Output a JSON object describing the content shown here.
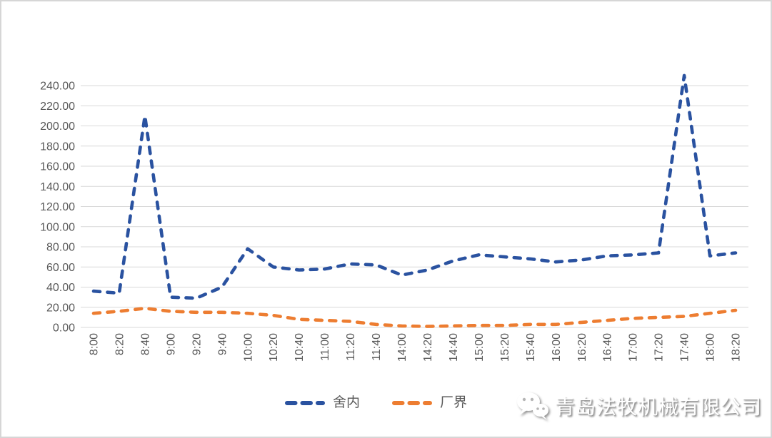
{
  "chart_data": {
    "type": "line",
    "title": "",
    "categories": [
      "8:00",
      "8:20",
      "8:40",
      "9:00",
      "9:20",
      "9:40",
      "10:00",
      "10:20",
      "10:40",
      "11:00",
      "11:20",
      "11:40",
      "14:00",
      "14:20",
      "14:40",
      "15:00",
      "15:20",
      "15:40",
      "16:00",
      "16:20",
      "16:40",
      "17:00",
      "17:20",
      "17:40",
      "18:00",
      "18:20"
    ],
    "series": [
      {
        "name": "舍内",
        "color": "#2A52A0",
        "line_style": "dashed",
        "values": [
          36,
          34,
          210,
          30,
          29,
          40,
          78,
          60,
          57,
          58,
          63,
          62,
          52,
          57,
          66,
          72,
          70,
          68,
          65,
          67,
          71,
          72,
          74,
          250,
          71,
          74
        ]
      },
      {
        "name": "厂界",
        "color": "#ED7D31",
        "line_style": "dashed",
        "values": [
          14,
          16,
          19,
          16,
          15,
          15,
          14,
          12,
          8,
          7,
          6,
          3,
          1.5,
          1,
          1.5,
          2,
          2,
          3,
          3,
          5,
          7,
          9,
          10,
          11,
          14,
          17
        ]
      }
    ],
    "ylim": [
      0,
      240
    ],
    "ytick_step": 20,
    "y_tick_labels": [
      "0.00",
      "20.00",
      "40.00",
      "60.00",
      "80.00",
      "100.00",
      "120.00",
      "140.00",
      "160.00",
      "180.00",
      "200.00",
      "220.00",
      "240.00"
    ],
    "grid": "horizontal",
    "legend_position": "bottom",
    "x_label_rotation": -90
  },
  "legend": {
    "items": [
      {
        "label": "舍内",
        "color": "#2A52A0"
      },
      {
        "label": "厂界",
        "color": "#ED7D31"
      }
    ]
  },
  "watermark": {
    "icon": "wechat-icon",
    "text": "青岛法牧机械有限公司"
  },
  "colors": {
    "axis_text": "#595959",
    "gridline": "#d9d9d9",
    "background": "#ffffff",
    "border": "#d6d6d6"
  }
}
